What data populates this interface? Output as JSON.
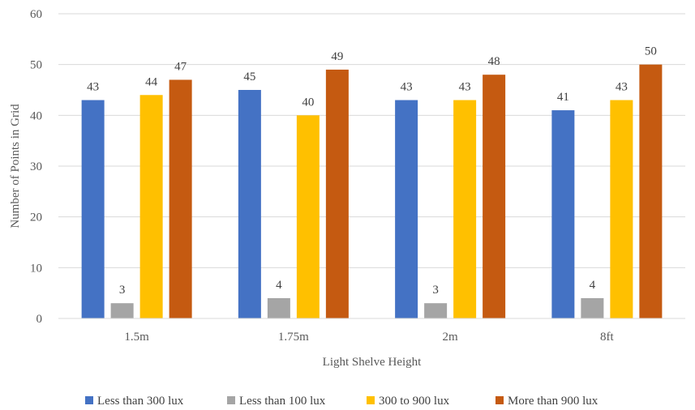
{
  "chart_data": {
    "type": "bar",
    "categories": [
      "1.5m",
      "1.75m",
      "2m",
      "8ft"
    ],
    "series": [
      {
        "name": "Less than 300 lux",
        "color": "#4472C4",
        "values": [
          43,
          45,
          43,
          41
        ]
      },
      {
        "name": "Less than 100 lux",
        "color": "#A5A5A5",
        "values": [
          3,
          4,
          3,
          4
        ]
      },
      {
        "name": "300 to 900 lux",
        "color": "#FFC000",
        "values": [
          44,
          40,
          43,
          43
        ]
      },
      {
        "name": "More than 900 lux",
        "color": "#C55A11",
        "values": [
          47,
          49,
          48,
          50
        ]
      }
    ],
    "xlabel": "Light Shelve Height",
    "ylabel": "Number of Points in Grid",
    "ylim": [
      0,
      60
    ],
    "yticks": [
      0,
      10,
      20,
      30,
      40,
      50,
      60
    ],
    "grid": true,
    "legend": "bottom",
    "data_labels": true
  }
}
